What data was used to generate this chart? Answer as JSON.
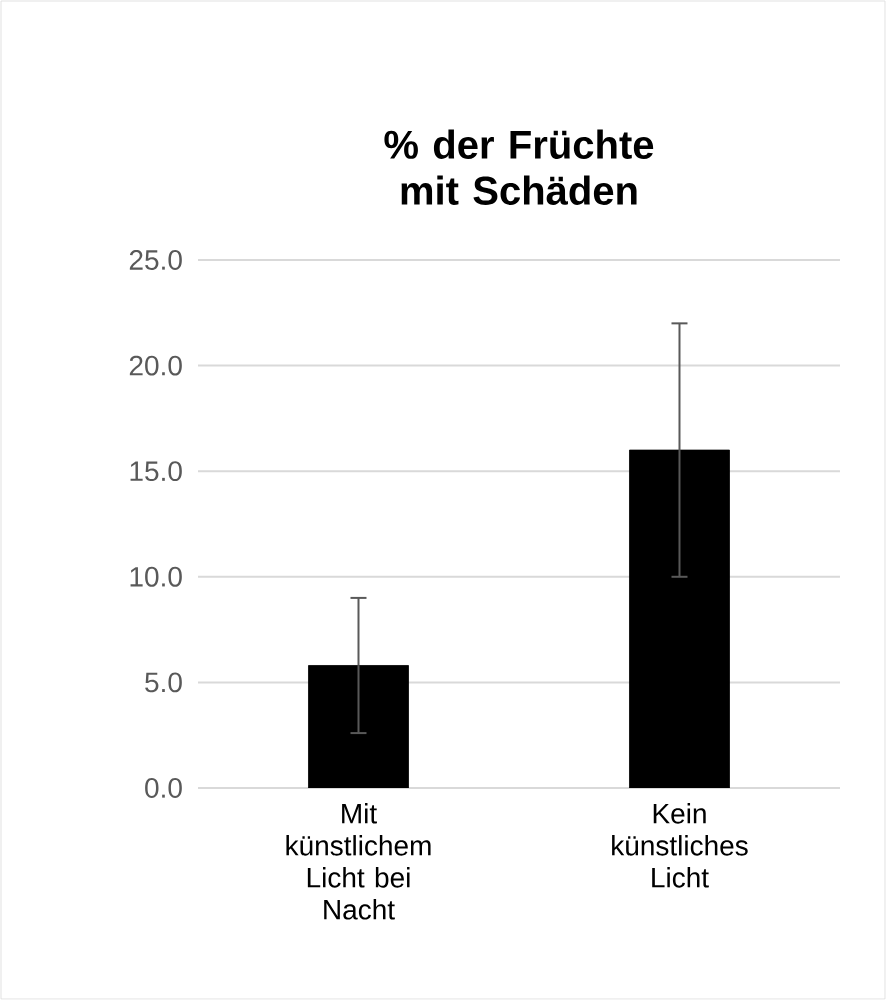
{
  "chart_data": {
    "type": "bar",
    "title": "% der Früchte mit Schäden",
    "categories": [
      "Mit künstlichem Licht bei Nacht",
      "Kein künstliches Licht"
    ],
    "values": [
      5.8,
      16.0
    ],
    "errors": [
      3.2,
      6.0
    ],
    "color": "#000000",
    "ylim": [
      0,
      25
    ],
    "yticks": [
      {
        "value": 0,
        "label": "0.0"
      },
      {
        "value": 5,
        "label": "5.0"
      },
      {
        "value": 10,
        "label": "10.0"
      },
      {
        "value": 15,
        "label": "15.0"
      },
      {
        "value": 20,
        "label": "20.0"
      },
      {
        "value": 25,
        "label": "25.0"
      }
    ],
    "grid": "y"
  }
}
